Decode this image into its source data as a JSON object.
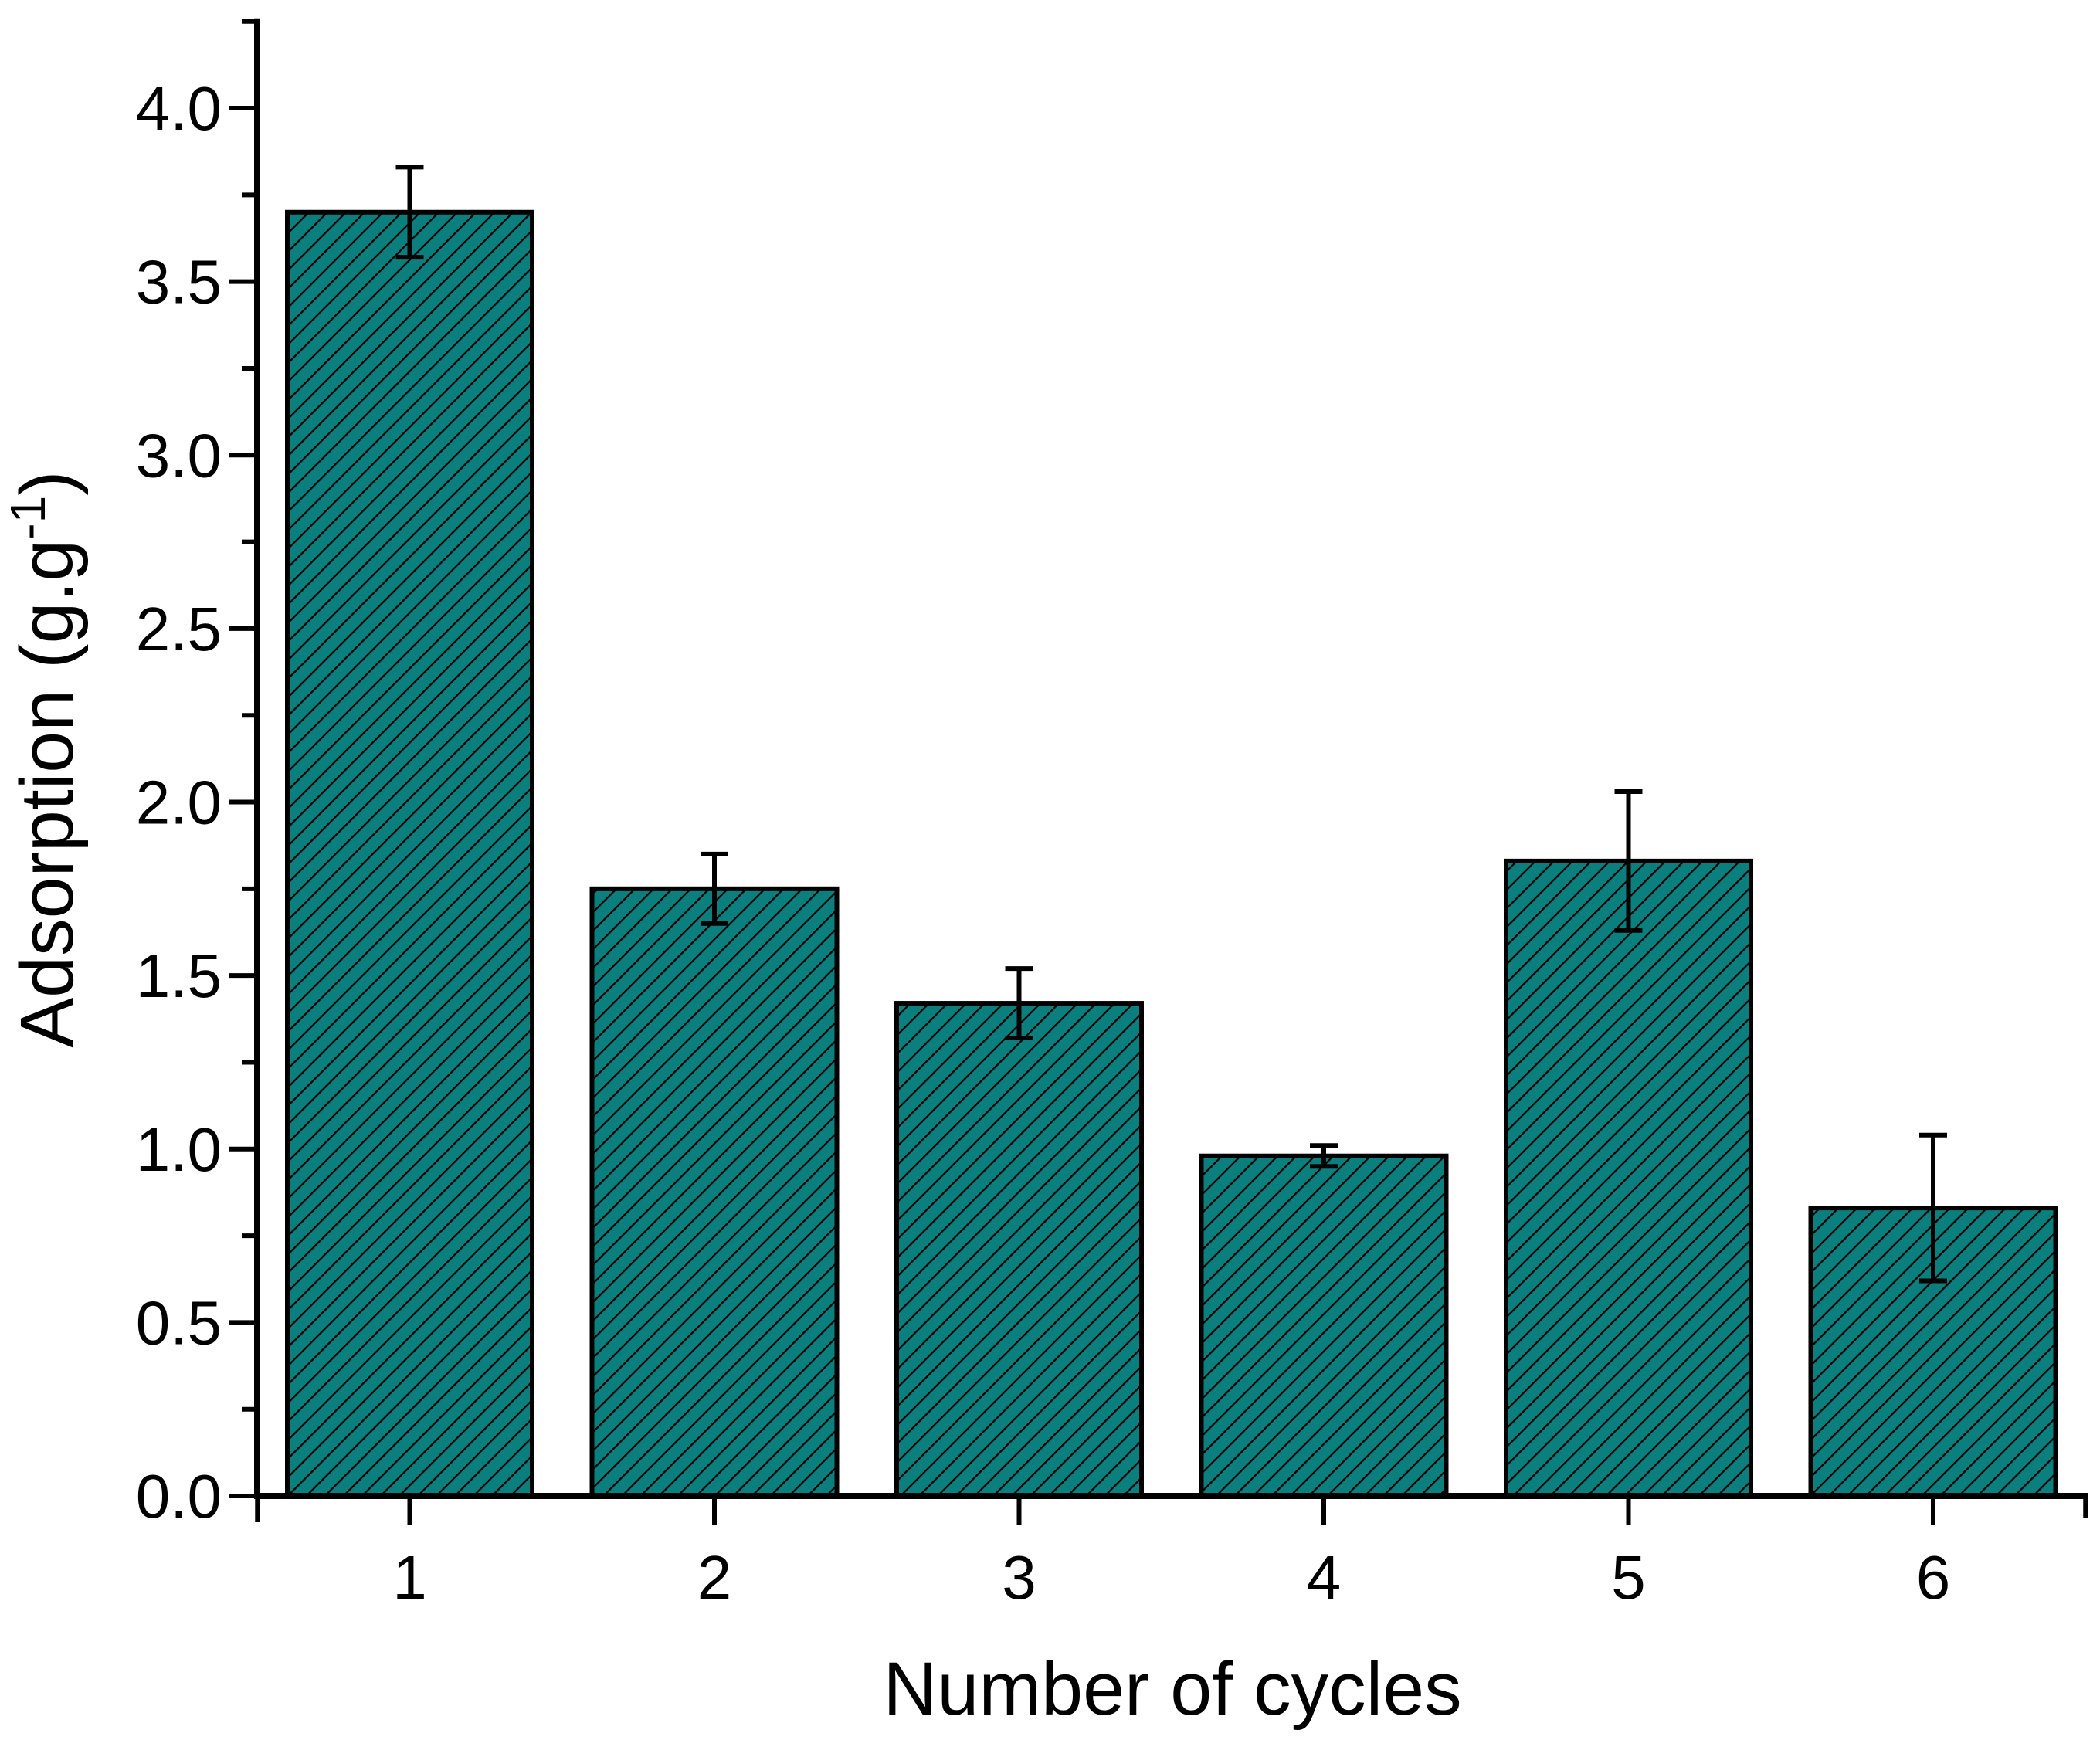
{
  "chart_data": {
    "type": "bar",
    "title": "",
    "categories": [
      "1",
      "2",
      "3",
      "4",
      "5",
      "6"
    ],
    "values": [
      3.7,
      1.75,
      1.42,
      0.98,
      1.83,
      0.83
    ],
    "errors": [
      0.13,
      0.1,
      0.1,
      0.03,
      0.2,
      0.21
    ],
    "series_name": "Adsorption",
    "xlabel": "Number of cycles",
    "ylabel": "Adsorption (g.g⁻¹)",
    "ylabel_main": "Adsorption (g.g",
    "ylabel_superscript": "-1",
    "ylabel_close": ")",
    "ylim": [
      0,
      4.25
    ],
    "y_major_ticks": [
      0.0,
      0.5,
      1.0,
      1.5,
      2.0,
      2.5,
      3.0,
      3.5,
      4.0
    ],
    "y_tick_labels": [
      "0.0",
      "0.5",
      "1.0",
      "1.5",
      "2.0",
      "2.5",
      "3.0",
      "3.5",
      "4.0"
    ],
    "y_minor_step": 0.25,
    "grid": false,
    "legend": false,
    "error_bars": "symmetric, black, capped both ends",
    "bar_hatch": "forward-diagonal (/)",
    "style": {
      "bar_fill": "#0a7f7e",
      "bar_edge": "#000000",
      "hatch_color": "#000000",
      "axis_color": "#000000",
      "text_color": "#000000",
      "background": "#ffffff"
    }
  }
}
